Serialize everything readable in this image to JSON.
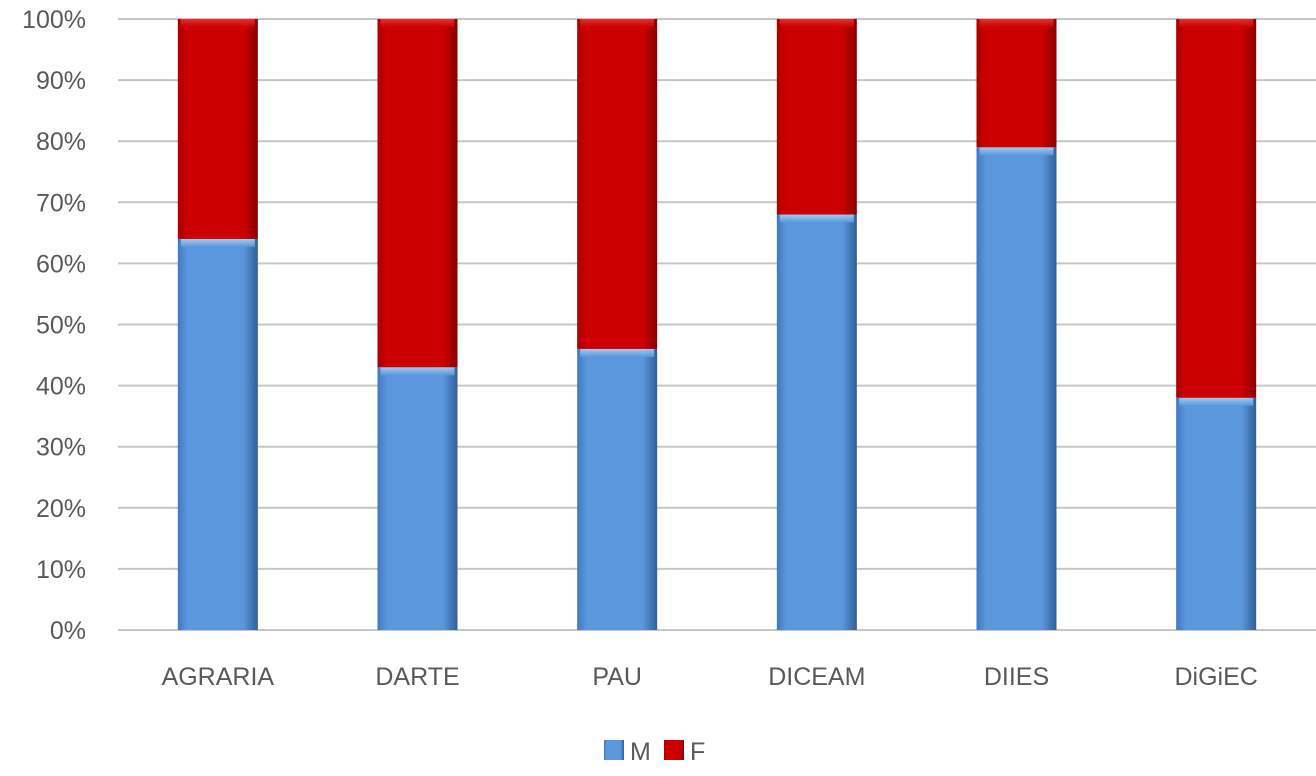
{
  "chart_data": {
    "type": "bar",
    "stacked": true,
    "normalized": true,
    "categories": [
      "AGRARIA",
      "DARTE",
      "PAU",
      "DICEAM",
      "DIIES",
      "DiGiEC"
    ],
    "series": [
      {
        "name": "M",
        "values": [
          64,
          43,
          46,
          68,
          79,
          38
        ],
        "color": "#5a96dc"
      },
      {
        "name": "F",
        "values": [
          36,
          57,
          54,
          32,
          21,
          62
        ],
        "color": "#cc0000"
      }
    ],
    "title": "",
    "xlabel": "",
    "ylabel": "",
    "ylim": [
      0,
      100
    ],
    "yticks": [
      "0%",
      "10%",
      "20%",
      "30%",
      "40%",
      "50%",
      "60%",
      "70%",
      "80%",
      "90%",
      "100%"
    ],
    "grid": true,
    "legend_position": "bottom"
  }
}
